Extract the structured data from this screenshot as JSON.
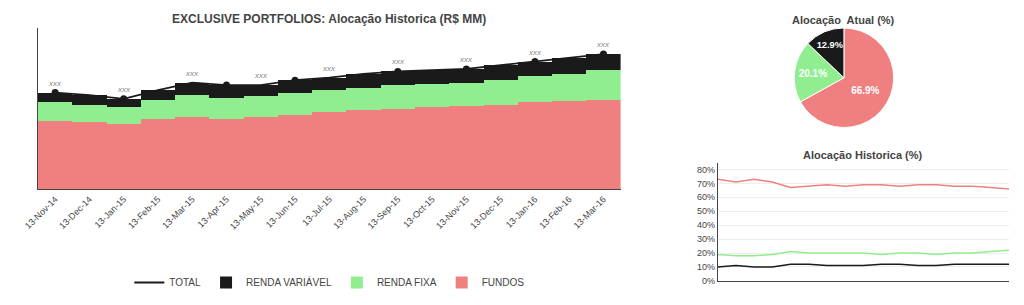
{
  "chart_data": [
    {
      "type": "bar",
      "title": "EXCLUSIVE PORTFOLIOS: Alocação Historica (R$ MM)",
      "stacked": true,
      "categories": [
        "13-Nov-14",
        "13-Dec-14",
        "13-Jan-15",
        "13-Feb-15",
        "13-Mar-15",
        "13-Apr-15",
        "13-May-15",
        "13-Jun-15",
        "13-Jul-15",
        "13-Aug-15",
        "13-Sep-15",
        "13-Oct-15",
        "13-Nov-15",
        "13-Dec-15",
        "13-Jan-16",
        "13-Feb-16",
        "13-Mar-16"
      ],
      "series": [
        {
          "name": "FUNDOS",
          "color": "#F08080",
          "values": [
            55,
            54,
            53,
            57,
            58,
            57,
            58,
            60,
            62,
            64,
            65,
            66,
            67,
            68,
            70,
            71,
            72
          ]
        },
        {
          "name": "RENDA FIXA",
          "color": "#90EE90",
          "values": [
            15,
            14,
            13,
            15,
            18,
            17,
            17,
            18,
            18,
            18,
            19,
            19,
            19,
            20,
            21,
            22,
            24
          ]
        },
        {
          "name": "RENDA VARIÁVEL",
          "color": "#1a1a1a",
          "values": [
            8,
            8,
            7,
            8,
            10,
            10,
            9,
            10,
            10,
            11,
            11,
            11,
            11,
            12,
            12,
            13,
            13
          ]
        },
        {
          "name": "TOTAL",
          "type": "line",
          "color": "#1a1a1a",
          "values": [
            78,
            76,
            73,
            80,
            86,
            84,
            84,
            88,
            90,
            93,
            95,
            96,
            97,
            100,
            103,
            106,
            109
          ]
        },
        {
          "type": "scatter",
          "marker": "circle",
          "color": "#1a1a1a",
          "values": [
            78,
            null,
            73,
            null,
            null,
            84,
            null,
            88,
            null,
            null,
            95,
            null,
            97,
            null,
            103,
            null,
            109
          ]
        }
      ],
      "annotations": [
        {
          "text": "xxx",
          "x": "13-Nov-14",
          "y": 78
        },
        {
          "text": "xxx",
          "x": "13-Jan-15",
          "y": 73
        },
        {
          "text": "xxx",
          "x": "13-Mar-15",
          "y": 86
        },
        {
          "text": "xxx",
          "x": "13-May-15",
          "y": 84
        },
        {
          "text": "xxx",
          "x": "13-Jul-15",
          "y": 90
        },
        {
          "text": "xxx",
          "x": "13-Sep-15",
          "y": 95
        },
        {
          "text": "xxx",
          "x": "13-Nov-15",
          "y": 97
        },
        {
          "text": "xxx",
          "x": "13-Jan-16",
          "y": 103
        },
        {
          "text": "xxx",
          "x": "13-Mar-16",
          "y": 109
        }
      ],
      "ylim": [
        0,
        130
      ],
      "tick_labels": "x",
      "grid": false,
      "legend": "bottom"
    },
    {
      "type": "pie",
      "title": "Alocação  Atual (%)",
      "values": [
        66.9,
        20.1,
        12.9
      ],
      "value_labels": [
        "66.9%",
        "20.1%",
        "12.9%"
      ],
      "colors": [
        "#F08080",
        "#90EE90",
        "#1a1a1a"
      ],
      "data_labels": true
    },
    {
      "type": "line",
      "title": "Alocação Historica (%)",
      "series": [
        {
          "color": "#F08080",
          "values": [
            73,
            71,
            73,
            71,
            67,
            68,
            69,
            68,
            69,
            69,
            68,
            69,
            69,
            68,
            68,
            67,
            66
          ]
        },
        {
          "color": "#90EE90",
          "values": [
            19,
            18,
            18,
            19,
            21,
            20,
            20,
            20,
            20,
            19,
            20,
            20,
            19,
            20,
            20,
            21,
            22
          ]
        },
        {
          "color": "#1a1a1a",
          "values": [
            10,
            11,
            10,
            10,
            12,
            12,
            11,
            11,
            11,
            12,
            12,
            11,
            11,
            12,
            12,
            12,
            12
          ]
        }
      ],
      "ylim": [
        0,
        85
      ],
      "yticks": [
        {
          "value": 0,
          "label": "0%"
        },
        {
          "value": 10,
          "label": "10%"
        },
        {
          "value": 20,
          "label": "20%"
        },
        {
          "value": 30,
          "label": "30%"
        },
        {
          "value": 40,
          "label": "40%"
        },
        {
          "value": 50,
          "label": "50%"
        },
        {
          "value": 60,
          "label": "60%"
        },
        {
          "value": 70,
          "label": "70%"
        },
        {
          "value": 80,
          "label": "80%"
        }
      ],
      "grid": true,
      "tick_labels": "y"
    }
  ]
}
